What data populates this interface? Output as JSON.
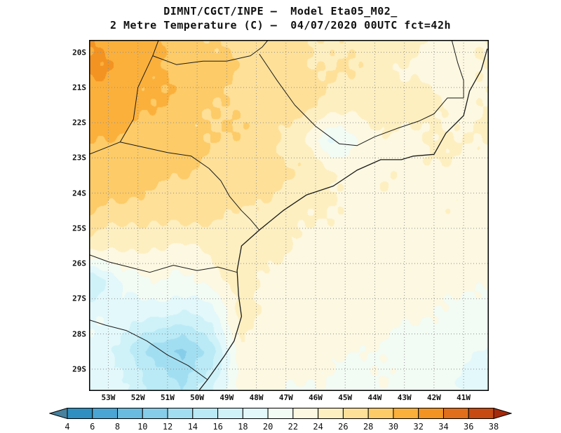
{
  "title": {
    "line1": "DIMNT/CGCT/INPE —  Model Eta05_M02_",
    "line2": "2 Metre Temperature (C) —  04/07/2020 00UTC fct=42h"
  },
  "chart_data": {
    "type": "heatmap",
    "title": "DIMNT/CGCT/INPE — Model Eta05_M02_",
    "subtitle": "2 Metre Temperature (C) — 04/07/2020 00UTC fct=42h",
    "variable": "2 Metre Temperature",
    "units": "C",
    "valid": "04/07/2020 00UTC fct=42h",
    "lat_labels": [
      "20S",
      "21S",
      "22S",
      "23S",
      "24S",
      "25S",
      "26S",
      "27S",
      "28S",
      "29S"
    ],
    "lon_labels": [
      "53W",
      "52W",
      "51W",
      "50W",
      "49W",
      "48W",
      "47W",
      "46W",
      "45W",
      "44W",
      "43W",
      "42W",
      "41W"
    ],
    "extent": {
      "lon_west": 53.65,
      "lon_east": 40.15,
      "lat_north": 19.65,
      "lat_south": 29.62
    },
    "levels": [
      4,
      6,
      8,
      10,
      12,
      14,
      16,
      18,
      20,
      22,
      24,
      26,
      28,
      30,
      32,
      34,
      36,
      38
    ],
    "colors": {
      "under": "#47819e",
      "scale": [
        "#2e8fc0",
        "#4aa5d4",
        "#69bbdf",
        "#86cde9",
        "#a2def1",
        "#b9eaf6",
        "#cff2f9",
        "#e2f8fb",
        "#f2fbf4",
        "#fdf8e1",
        "#fdefc0",
        "#fee099",
        "#fdcb67",
        "#fbb03b",
        "#f29322",
        "#e06e1a",
        "#c74a12"
      ],
      "over": "#a52a0c"
    },
    "grid": {
      "resolution_deg": 1,
      "lons_w": [
        53.5,
        52.5,
        51.5,
        50.5,
        49.5,
        48.5,
        47.5,
        46.5,
        45.5,
        44.5,
        43.5,
        42.5,
        41.5,
        40.5
      ],
      "lats_s": [
        19.5,
        20.5,
        21.5,
        22.5,
        23.5,
        24.5,
        25.5,
        26.5,
        27.5,
        28.5,
        29.5
      ],
      "temps_c": [
        [
          32,
          31,
          30,
          29,
          28,
          27.5,
          26.5,
          26.5,
          26,
          25.5,
          25,
          24,
          23.5,
          24
        ],
        [
          32,
          31.5,
          30.5,
          29.5,
          28.5,
          27.5,
          27,
          26.5,
          26,
          25.5,
          24.5,
          23.5,
          22.5,
          23.5
        ],
        [
          31,
          31,
          30,
          29,
          28.5,
          27.5,
          27,
          26.5,
          26,
          24.5,
          25,
          24.5,
          24,
          24
        ],
        [
          30,
          29.5,
          29,
          28.5,
          28,
          27.5,
          27,
          24.5,
          19.5,
          22,
          24,
          24,
          24,
          24
        ],
        [
          29.5,
          29,
          28.5,
          28,
          27.5,
          27,
          26.5,
          26,
          24.5,
          23.5,
          23.5,
          23.5,
          23.5,
          23.5
        ],
        [
          28,
          27.5,
          27,
          27,
          26.5,
          26,
          25.5,
          24.5,
          23.5,
          23.5,
          23.5,
          23.5,
          23.5,
          23
        ],
        [
          25,
          24.5,
          24,
          24,
          24.5,
          25.5,
          24.5,
          23.5,
          23.5,
          23.5,
          23,
          23,
          23,
          22.5
        ],
        [
          15.5,
          21,
          22,
          21.5,
          22.5,
          25.5,
          23.5,
          23,
          23,
          23,
          23,
          22.5,
          22.5,
          22
        ],
        [
          20,
          19,
          18,
          17.5,
          19,
          24.5,
          23.5,
          23,
          23,
          22.5,
          22.5,
          22,
          22,
          21.5
        ],
        [
          19.5,
          17,
          13.5,
          11,
          15,
          23.5,
          23,
          22.5,
          22.5,
          22,
          22,
          21.5,
          21,
          20
        ],
        [
          20,
          18,
          15.5,
          14,
          18,
          22.5,
          22.5,
          22,
          22,
          21.5,
          21.5,
          21,
          20.5,
          19.5
        ]
      ]
    },
    "outlines": {
      "coast": [
        [
          40.2,
          19.9
        ],
        [
          40.4,
          20.5
        ],
        [
          40.8,
          21.1
        ],
        [
          41.0,
          21.8
        ],
        [
          41.6,
          22.3
        ],
        [
          42.0,
          22.9
        ],
        [
          42.7,
          22.95
        ],
        [
          43.1,
          23.05
        ],
        [
          43.8,
          23.05
        ],
        [
          44.6,
          23.35
        ],
        [
          45.4,
          23.8
        ],
        [
          46.3,
          24.05
        ],
        [
          47.1,
          24.5
        ],
        [
          47.9,
          25.05
        ],
        [
          48.5,
          25.5
        ],
        [
          48.65,
          26.2
        ],
        [
          48.6,
          26.9
        ],
        [
          48.5,
          27.5
        ],
        [
          48.75,
          28.2
        ],
        [
          49.1,
          28.65
        ],
        [
          49.65,
          29.3
        ],
        [
          49.95,
          29.62
        ]
      ],
      "borders": [
        [
          [
            51.3,
            19.65
          ],
          [
            51.5,
            20.1
          ],
          [
            52.0,
            21.0
          ],
          [
            52.15,
            21.9
          ],
          [
            52.6,
            22.55
          ],
          [
            53.2,
            22.75
          ],
          [
            53.65,
            22.9
          ]
        ],
        [
          [
            51.5,
            20.1
          ],
          [
            50.7,
            20.35
          ],
          [
            49.8,
            20.25
          ],
          [
            49.0,
            20.25
          ],
          [
            48.2,
            20.1
          ],
          [
            47.8,
            19.85
          ],
          [
            47.6,
            19.65
          ]
        ],
        [
          [
            47.9,
            20.05
          ],
          [
            47.3,
            20.8
          ],
          [
            46.7,
            21.5
          ],
          [
            46.0,
            22.1
          ],
          [
            45.2,
            22.6
          ],
          [
            44.6,
            22.65
          ],
          [
            44.0,
            22.4
          ],
          [
            43.2,
            22.15
          ],
          [
            42.5,
            21.95
          ],
          [
            42.0,
            21.75
          ],
          [
            41.55,
            21.3
          ],
          [
            41.0,
            21.3
          ]
        ],
        [
          [
            41.4,
            19.65
          ],
          [
            41.2,
            20.3
          ],
          [
            41.0,
            20.8
          ],
          [
            41.0,
            21.3
          ]
        ],
        [
          [
            52.6,
            22.55
          ],
          [
            51.8,
            22.7
          ],
          [
            51.0,
            22.85
          ],
          [
            50.2,
            22.95
          ],
          [
            49.6,
            23.3
          ],
          [
            49.2,
            23.65
          ],
          [
            48.9,
            24.1
          ],
          [
            48.5,
            24.5
          ],
          [
            48.2,
            24.75
          ],
          [
            47.9,
            25.05
          ]
        ],
        [
          [
            48.65,
            26.25
          ],
          [
            49.3,
            26.1
          ],
          [
            50.0,
            26.2
          ],
          [
            50.8,
            26.05
          ],
          [
            51.6,
            26.25
          ],
          [
            52.3,
            26.1
          ],
          [
            53.0,
            25.95
          ],
          [
            53.65,
            25.75
          ]
        ],
        [
          [
            49.65,
            29.3
          ],
          [
            50.3,
            28.9
          ],
          [
            51.0,
            28.6
          ],
          [
            51.7,
            28.2
          ],
          [
            52.4,
            27.9
          ],
          [
            53.1,
            27.75
          ],
          [
            53.65,
            27.6
          ]
        ]
      ]
    },
    "layout": {
      "grid_lines": "dotted, every 1 degree",
      "legend_position": "bottom colorbar with under/over arrows"
    }
  }
}
